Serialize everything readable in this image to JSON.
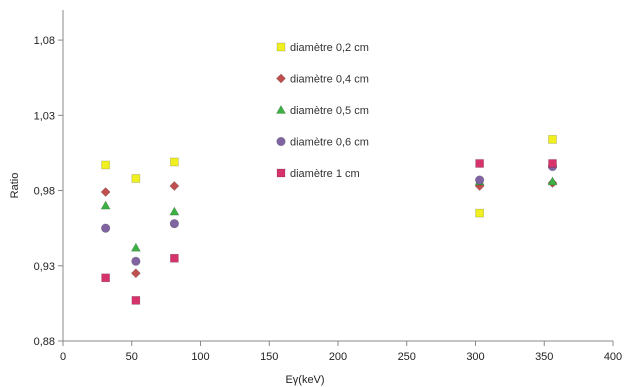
{
  "chart_data": {
    "type": "scatter",
    "title": "",
    "xlabel": "Eγ(keV)",
    "ylabel": "Ratio",
    "xlim": [
      0,
      400
    ],
    "ylim": [
      0.88,
      1.1
    ],
    "xticks": [
      "0",
      "50",
      "100",
      "150",
      "200",
      "250",
      "300",
      "350",
      "400"
    ],
    "yticks": [
      "0,88",
      "0,93",
      "0,98",
      "1,03",
      "1,08"
    ],
    "grid": false,
    "legend_position": "top-center",
    "series": [
      {
        "name": "diamètre 0,2 cm",
        "marker": "square",
        "color": "#f0f020",
        "x": [
          31,
          53,
          81,
          303,
          356
        ],
        "y": [
          0.997,
          0.988,
          0.999,
          0.965,
          1.014
        ]
      },
      {
        "name": "diamètre 0,4 cm",
        "marker": "diamond",
        "color": "#c0504d",
        "x": [
          31,
          53,
          81,
          303,
          356
        ],
        "y": [
          0.979,
          0.925,
          0.983,
          0.983,
          0.985
        ]
      },
      {
        "name": "diamètre 0,5 cm",
        "marker": "triangle",
        "color": "#3cb043",
        "x": [
          31,
          53,
          81,
          303,
          356
        ],
        "y": [
          0.97,
          0.942,
          0.966,
          0.986,
          0.986
        ]
      },
      {
        "name": "diamètre 0,6 cm",
        "marker": "circle",
        "color": "#8064a2",
        "x": [
          31,
          53,
          81,
          303,
          356
        ],
        "y": [
          0.955,
          0.933,
          0.958,
          0.987,
          0.996
        ]
      },
      {
        "name": "diamètre 1 cm",
        "marker": "square",
        "color": "#d6336c",
        "x": [
          31,
          53,
          81,
          303,
          356
        ],
        "y": [
          0.922,
          0.907,
          0.935,
          0.998,
          0.998
        ]
      }
    ]
  }
}
